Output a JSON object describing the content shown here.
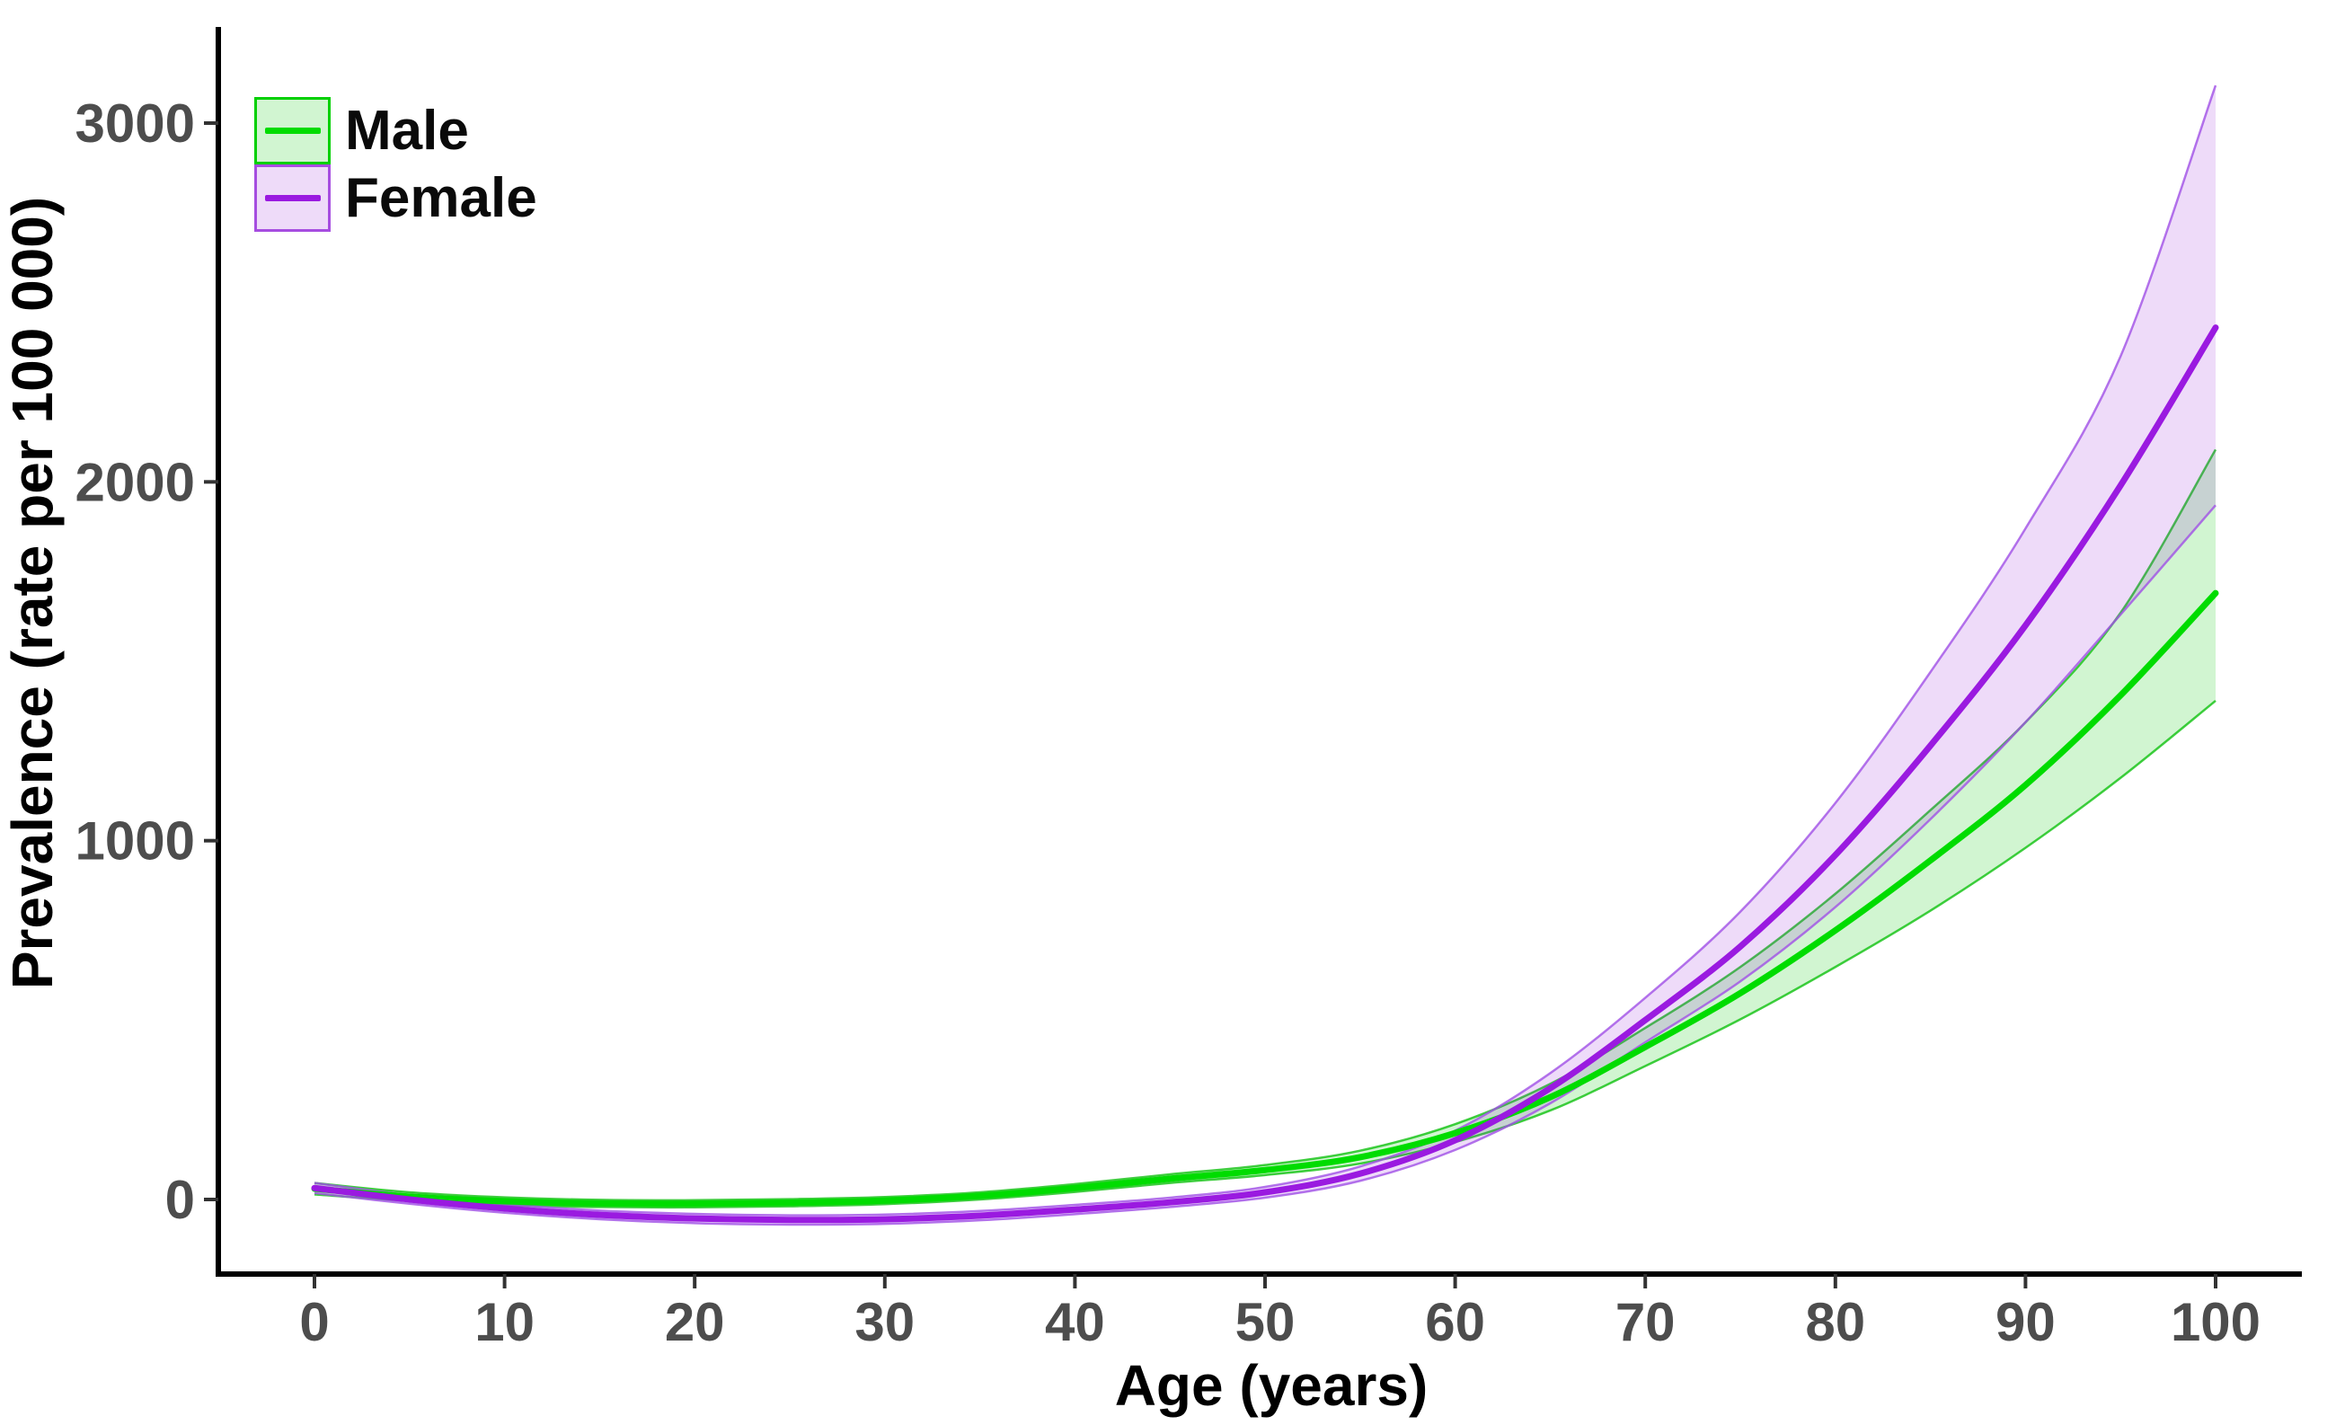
{
  "figure": {
    "background": "#ffffff",
    "axis_color": "#000000",
    "tick_color": "#333333",
    "tick_label_color": "#4d4d4d"
  },
  "legend": {
    "position": "top-left",
    "entries": [
      {
        "label": "Male",
        "line_color": "#00dc00",
        "fill_color": "rgba(0,200,0,0.18)",
        "border_color": "#00d000"
      },
      {
        "label": "Female",
        "line_color": "#9a1ae0",
        "fill_color": "rgba(150,30,220,0.16)",
        "border_color": "#a64de0"
      }
    ]
  },
  "chart_data": {
    "type": "line",
    "title": "",
    "xlabel": "Age (years)",
    "ylabel": "Prevalence (rate per 100 000)",
    "x_ticks": [
      0,
      10,
      20,
      30,
      40,
      50,
      60,
      70,
      80,
      90,
      100
    ],
    "y_ticks": [
      0,
      1000,
      2000,
      3000
    ],
    "xlim": [
      -5,
      104
    ],
    "ylim": [
      -210,
      3280
    ],
    "grid": false,
    "legend_position": "top-left inside",
    "band_note": "shaded ribbons are confidence intervals; overlap of the two ribbons renders gray",
    "ages": [
      0,
      5,
      10,
      15,
      20,
      25,
      30,
      35,
      40,
      45,
      50,
      55,
      60,
      65,
      70,
      75,
      80,
      85,
      90,
      95,
      100
    ],
    "series": [
      {
        "name": "Male",
        "line_color": "#00dc00",
        "fill_color": "rgba(0,200,0,0.18)",
        "edge_color": "rgba(0,190,0,0.75)",
        "mean": [
          30,
          8,
          -5,
          -11,
          -12,
          -9,
          -3,
          10,
          32,
          58,
          82,
          118,
          185,
          285,
          425,
          575,
          750,
          945,
          1155,
          1405,
          1690
        ],
        "lower": [
          14,
          -4,
          -16,
          -21,
          -22,
          -19,
          -13,
          0,
          21,
          46,
          68,
          100,
          160,
          248,
          372,
          502,
          648,
          805,
          980,
          1175,
          1390
        ],
        "upper": [
          46,
          20,
          6,
          -1,
          -2,
          1,
          7,
          20,
          43,
          70,
          96,
          136,
          210,
          322,
          478,
          648,
          852,
          1085,
          1330,
          1635,
          2090
        ]
      },
      {
        "name": "Female",
        "line_color": "#9a1ae0",
        "fill_color": "rgba(150,30,220,0.16)",
        "edge_color": "rgba(160,80,230,0.8)",
        "mean": [
          32,
          0,
          -25,
          -43,
          -53,
          -57,
          -55,
          -45,
          -28,
          -8,
          20,
          72,
          165,
          310,
          500,
          705,
          960,
          1265,
          1600,
          1990,
          2430
        ],
        "lower": [
          18,
          -12,
          -37,
          -55,
          -66,
          -70,
          -68,
          -58,
          -41,
          -21,
          5,
          52,
          138,
          268,
          438,
          608,
          815,
          1060,
          1330,
          1630,
          1935
        ],
        "upper": [
          46,
          12,
          -13,
          -31,
          -40,
          -44,
          -42,
          -32,
          -15,
          5,
          35,
          92,
          192,
          352,
          562,
          802,
          1105,
          1470,
          1870,
          2350,
          3105
        ]
      }
    ]
  }
}
